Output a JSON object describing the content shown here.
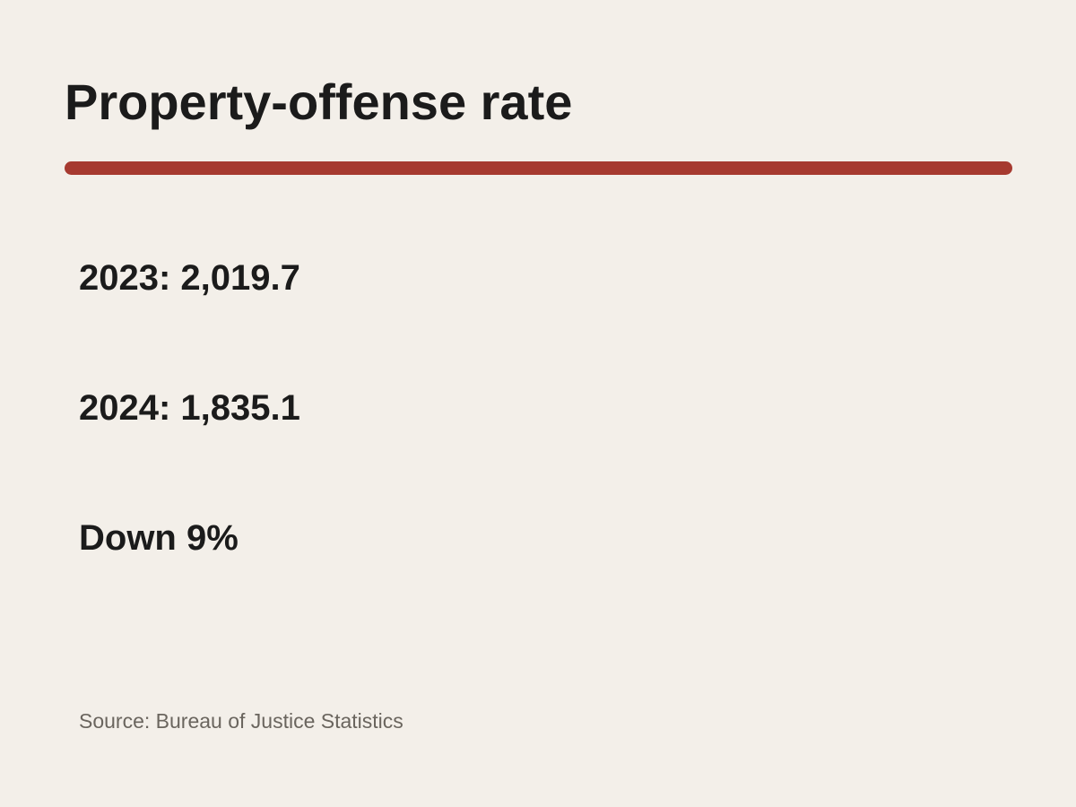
{
  "colors": {
    "background": "#f3efe9",
    "accent": "#a63a30",
    "text": "#1b1b1b",
    "muted": "#6a655e"
  },
  "title": "Property-offense rate",
  "stats": [
    {
      "text": "2023: 2,019.7"
    },
    {
      "text": "2024: 1,835.1"
    },
    {
      "text": "Down 9%"
    }
  ],
  "source": "Source: Bureau of Justice Statistics"
}
